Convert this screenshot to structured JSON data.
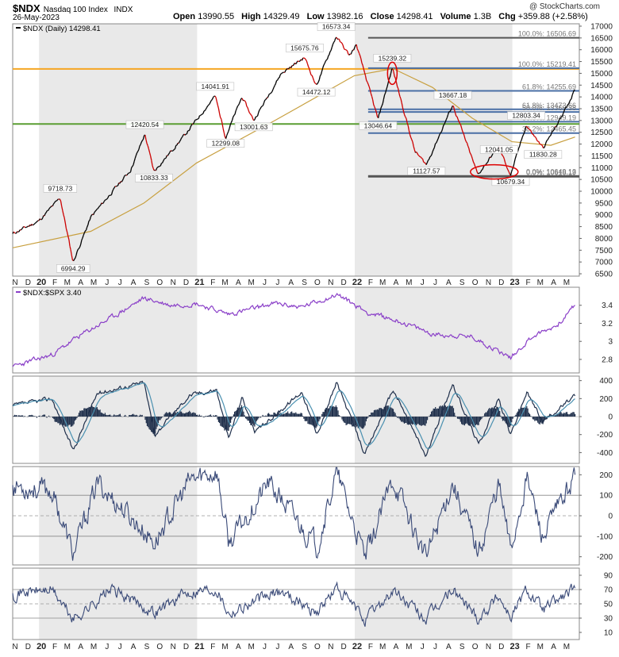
{
  "header": {
    "symbol": "$NDX",
    "name": "Nasdaq 100 Index",
    "exchange": "INDX",
    "date": "26-May-2023",
    "brand": "@ StockCharts.com",
    "open_label": "Open",
    "open": "13990.55",
    "high_label": "High",
    "high": "14329.49",
    "low_label": "Low",
    "low": "13982.16",
    "close_label": "Close",
    "close": "14298.41",
    "volume_label": "Volume",
    "volume": "1.3B",
    "chg_label": "Chg",
    "chg": "+359.88 (+2.58%)"
  },
  "colors": {
    "price_up": "#000000",
    "price_down": "#cc0000",
    "ma": "#c8a040",
    "orange_line": "#f5a623",
    "green_line": "#5a9e32",
    "blue_line": "#4a6fa5",
    "gray_line": "#555555",
    "ratio": "#8a3fc8",
    "macd": "#1e2e4a",
    "signal": "#4a90b0",
    "osc": "#3a4a78",
    "band_shade": "#e9e9e9",
    "panel_bg": "#f5f5f5",
    "highlight": "#dd0000"
  },
  "chart_data": [
    {
      "type": "line",
      "title": "$NDX (Daily) 14298.41",
      "series": [
        {
          "name": "$NDX (Daily) 14298.41",
          "points": [
            [
              "2019-11-01",
              8200
            ],
            [
              "2019-12-31",
              8730
            ],
            [
              "2020-02-19",
              9718.73
            ],
            [
              "2020-03-20",
              6994.29
            ],
            [
              "2020-04-30",
              8900
            ],
            [
              "2020-06-15",
              9900
            ],
            [
              "2020-07-31",
              10900
            ],
            [
              "2020-09-02",
              12420.54
            ],
            [
              "2020-09-23",
              10833.33
            ],
            [
              "2020-11-30",
              12300
            ],
            [
              "2021-02-12",
              14041.91
            ],
            [
              "2021-03-08",
              12299.08
            ],
            [
              "2021-04-15",
              14000
            ],
            [
              "2021-05-12",
              13001.63
            ],
            [
              "2021-07-15",
              15000
            ],
            [
              "2021-09-07",
              15675.76
            ],
            [
              "2021-10-04",
              14472.12
            ],
            [
              "2021-11-19",
              16573.34
            ],
            [
              "2021-12-20",
              15750
            ],
            [
              "2022-01-05",
              16200
            ],
            [
              "2022-02-24",
              13046.64
            ],
            [
              "2022-03-29",
              15239.32
            ],
            [
              "2022-05-20",
              11700
            ],
            [
              "2022-06-16",
              11127.57
            ],
            [
              "2022-08-16",
              13667.18
            ],
            [
              "2022-10-13",
              10700
            ],
            [
              "2022-11-30",
              11900
            ],
            [
              "2022-12-28",
              10679.34
            ],
            [
              "2023-02-02",
              12803.34
            ],
            [
              "2023-03-13",
              11830.28
            ],
            [
              "2023-04-20",
              13000
            ],
            [
              "2023-05-26",
              14298.41
            ]
          ]
        },
        {
          "name": "moving-average",
          "points": [
            [
              "2019-11-01",
              7600
            ],
            [
              "2020-04-30",
              8300
            ],
            [
              "2020-08-31",
              9500
            ],
            [
              "2020-12-31",
              11200
            ],
            [
              "2021-06-30",
              13000
            ],
            [
              "2021-12-31",
              14900
            ],
            [
              "2022-03-31",
              15200
            ],
            [
              "2022-06-30",
              14400
            ],
            [
              "2022-09-30",
              13100
            ],
            [
              "2022-12-31",
              12100
            ],
            [
              "2023-03-31",
              11950
            ],
            [
              "2023-05-26",
              12300
            ]
          ]
        }
      ],
      "point_labels": [
        "9718.73",
        "6994.29",
        "12420.54",
        "10833.33",
        "14041.91",
        "12299.08",
        "13001.63",
        "15675.76",
        "14472.12",
        "16573.34",
        "13046.64",
        "15239.32",
        "11127.57",
        "13667.18",
        "10679.34",
        "12803.34",
        "12041.05",
        "11830.28"
      ],
      "horizontal_lines": [
        {
          "value": 16506.69,
          "label": "100.0%: 16506.69"
        },
        {
          "value": 15219.41,
          "label": "100.0%: 15219.41"
        },
        {
          "value": 14255.69,
          "label": "61.8%: 14255.69"
        },
        {
          "value": 13473.66,
          "label": "61.8%: 13473.66"
        },
        {
          "value": 13360.38,
          "label": "50.0%: 13360.38"
        },
        {
          "value": 12949.19,
          "label": "50.0%: 12949.19"
        },
        {
          "value": 12465.45,
          "label": "38.2%: 12465.45"
        },
        {
          "value": 10649.13,
          "label": "0.0%: 10649.13"
        },
        {
          "value": 10616.19,
          "label": "0.0%: 10616.19"
        }
      ],
      "ylim": [
        6400,
        17100
      ],
      "yticks": [
        6500,
        7000,
        7500,
        8000,
        8500,
        9000,
        9500,
        10000,
        10500,
        11000,
        11500,
        12000,
        12500,
        13000,
        13500,
        14000,
        14500,
        15000,
        15500,
        16000,
        16500,
        17000
      ]
    },
    {
      "type": "line",
      "title": "$NDX:$SPX 3.40",
      "series": [
        {
          "name": "$NDX:$SPX 3.40",
          "points": [
            [
              "2019-11-01",
              2.72
            ],
            [
              "2020-01-31",
              2.85
            ],
            [
              "2020-03-31",
              3.05
            ],
            [
              "2020-06-30",
              3.3
            ],
            [
              "2020-08-31",
              3.48
            ],
            [
              "2020-10-31",
              3.4
            ],
            [
              "2020-12-31",
              3.42
            ],
            [
              "2021-03-15",
              3.3
            ],
            [
              "2021-06-30",
              3.42
            ],
            [
              "2021-08-31",
              3.38
            ],
            [
              "2021-11-22",
              3.52
            ],
            [
              "2022-01-31",
              3.32
            ],
            [
              "2022-04-15",
              3.22
            ],
            [
              "2022-06-30",
              3.08
            ],
            [
              "2022-09-30",
              3.05
            ],
            [
              "2022-12-28",
              2.82
            ],
            [
              "2023-02-15",
              3.05
            ],
            [
              "2023-04-15",
              3.18
            ],
            [
              "2023-05-26",
              3.4
            ]
          ]
        }
      ],
      "ylim": [
        2.65,
        3.6
      ],
      "yticks": [
        2.8,
        3.0,
        3.2,
        3.4
      ]
    },
    {
      "type": "line",
      "title": "",
      "series": [
        {
          "name": "macd",
          "points": [
            [
              "2019-11-01",
              120
            ],
            [
              "2020-01-31",
              200
            ],
            [
              "2020-03-20",
              -380
            ],
            [
              "2020-05-15",
              260
            ],
            [
              "2020-08-31",
              380
            ],
            [
              "2020-09-25",
              -200
            ],
            [
              "2020-12-15",
              240
            ],
            [
              "2021-02-15",
              300
            ],
            [
              "2021-03-15",
              -250
            ],
            [
              "2021-04-15",
              220
            ],
            [
              "2021-05-15",
              -180
            ],
            [
              "2021-09-01",
              280
            ],
            [
              "2021-10-05",
              -200
            ],
            [
              "2021-11-20",
              380
            ],
            [
              "2022-01-25",
              -420
            ],
            [
              "2022-03-31",
              300
            ],
            [
              "2022-06-15",
              -440
            ],
            [
              "2022-08-15",
              360
            ],
            [
              "2022-10-15",
              -310
            ],
            [
              "2022-11-30",
              200
            ],
            [
              "2022-12-28",
              -200
            ],
            [
              "2023-02-03",
              270
            ],
            [
              "2023-03-13",
              -50
            ],
            [
              "2023-05-26",
              230
            ]
          ]
        }
      ],
      "ylim": [
        -520,
        450
      ],
      "yticks": [
        -400,
        -200,
        0,
        200,
        400
      ]
    },
    {
      "type": "line",
      "title": "",
      "series": [
        {
          "name": "oscillator",
          "points": [
            [
              "2019-11-01",
              150
            ],
            [
              "2020-01-31",
              120
            ],
            [
              "2020-03-20",
              -190
            ],
            [
              "2020-05-15",
              160
            ],
            [
              "2020-09-25",
              -130
            ],
            [
              "2020-12-15",
              170
            ],
            [
              "2021-02-15",
              220
            ],
            [
              "2021-03-15",
              -140
            ],
            [
              "2021-06-15",
              160
            ],
            [
              "2021-10-05",
              -150
            ],
            [
              "2021-11-20",
              210
            ],
            [
              "2022-01-25",
              -210
            ],
            [
              "2022-03-31",
              180
            ],
            [
              "2022-06-15",
              -210
            ],
            [
              "2022-08-15",
              170
            ],
            [
              "2022-10-15",
              -180
            ],
            [
              "2022-11-30",
              160
            ],
            [
              "2022-12-28",
              -170
            ],
            [
              "2023-02-03",
              190
            ],
            [
              "2023-03-13",
              -110
            ],
            [
              "2023-05-26",
              200
            ]
          ]
        }
      ],
      "ylim": [
        -240,
        240
      ],
      "yticks": [
        -200,
        -100,
        0,
        100,
        200
      ]
    },
    {
      "type": "line",
      "title": "",
      "series": [
        {
          "name": "rsi",
          "points": [
            [
              "2019-11-01",
              65
            ],
            [
              "2020-01-31",
              70
            ],
            [
              "2020-03-20",
              28
            ],
            [
              "2020-06-15",
              70
            ],
            [
              "2020-09-25",
              38
            ],
            [
              "2020-12-15",
              68
            ],
            [
              "2021-02-15",
              72
            ],
            [
              "2021-03-15",
              38
            ],
            [
              "2021-07-15",
              68
            ],
            [
              "2021-10-05",
              38
            ],
            [
              "2021-11-20",
              72
            ],
            [
              "2022-01-25",
              28
            ],
            [
              "2022-03-31",
              68
            ],
            [
              "2022-06-15",
              28
            ],
            [
              "2022-08-15",
              70
            ],
            [
              "2022-10-15",
              30
            ],
            [
              "2022-11-30",
              62
            ],
            [
              "2022-12-28",
              32
            ],
            [
              "2023-02-03",
              70
            ],
            [
              "2023-03-13",
              42
            ],
            [
              "2023-05-26",
              72
            ]
          ]
        }
      ],
      "ylim": [
        0,
        100
      ],
      "yticks": [
        10,
        30,
        50,
        70,
        90
      ]
    }
  ],
  "x_axis": {
    "start": "2019-11-01",
    "end": "2023-06-05",
    "labels": [
      [
        "2019-11-01",
        "N"
      ],
      [
        "2019-12-01",
        "D"
      ],
      [
        "2020-01-01",
        "20"
      ],
      [
        "2020-02-01",
        "F"
      ],
      [
        "2020-03-01",
        "M"
      ],
      [
        "2020-04-01",
        "A"
      ],
      [
        "2020-05-01",
        "M"
      ],
      [
        "2020-06-01",
        "J"
      ],
      [
        "2020-07-01",
        "J"
      ],
      [
        "2020-08-01",
        "A"
      ],
      [
        "2020-09-01",
        "S"
      ],
      [
        "2020-10-01",
        "O"
      ],
      [
        "2020-11-01",
        "N"
      ],
      [
        "2020-12-01",
        "D"
      ],
      [
        "2021-01-01",
        "21"
      ],
      [
        "2021-02-01",
        "F"
      ],
      [
        "2021-03-01",
        "M"
      ],
      [
        "2021-04-01",
        "A"
      ],
      [
        "2021-05-01",
        "M"
      ],
      [
        "2021-06-01",
        "J"
      ],
      [
        "2021-07-01",
        "J"
      ],
      [
        "2021-08-01",
        "A"
      ],
      [
        "2021-09-01",
        "S"
      ],
      [
        "2021-10-01",
        "O"
      ],
      [
        "2021-11-01",
        "N"
      ],
      [
        "2021-12-01",
        "D"
      ],
      [
        "2022-01-01",
        "22"
      ],
      [
        "2022-02-01",
        "F"
      ],
      [
        "2022-03-01",
        "M"
      ],
      [
        "2022-04-01",
        "A"
      ],
      [
        "2022-05-01",
        "M"
      ],
      [
        "2022-06-01",
        "J"
      ],
      [
        "2022-07-01",
        "J"
      ],
      [
        "2022-08-01",
        "A"
      ],
      [
        "2022-09-01",
        "S"
      ],
      [
        "2022-10-01",
        "O"
      ],
      [
        "2022-11-01",
        "N"
      ],
      [
        "2022-12-01",
        "D"
      ],
      [
        "2023-01-01",
        "23"
      ],
      [
        "2023-02-01",
        "F"
      ],
      [
        "2023-03-01",
        "M"
      ],
      [
        "2023-04-01",
        "A"
      ],
      [
        "2023-05-01",
        "M"
      ]
    ]
  }
}
